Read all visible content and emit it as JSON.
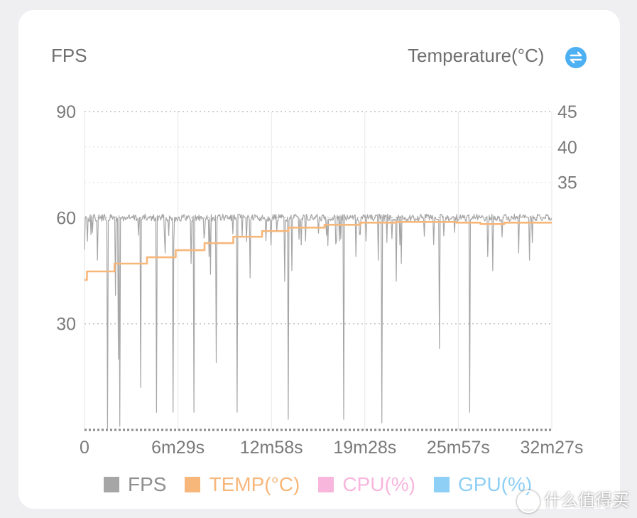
{
  "axis_titles": {
    "left": "FPS",
    "right": "Temperature(°C)"
  },
  "icons": {
    "swap": "swap-arrows-icon",
    "watermark": "zhidemai-logo-icon"
  },
  "watermark_text": "什么值得买",
  "colors": {
    "fps": "#a6a6a6",
    "temp": "#f7b77b",
    "cpu": "#f8b6dd",
    "gpu": "#8ecff5",
    "swap_icon": "#4db0f2",
    "axis_text": "#7a7a7a"
  },
  "chart_data": {
    "type": "line",
    "x_tick_labels": [
      "0",
      "6m29s",
      "12m58s",
      "19m28s",
      "25m57s",
      "32m27s"
    ],
    "x_range_seconds": [
      0,
      1947
    ],
    "y_left": {
      "label": "FPS",
      "ticks": [
        "90",
        "60",
        "30"
      ],
      "range": [
        0,
        90
      ]
    },
    "y_right": {
      "label": "Temperature(°C)",
      "ticks": [
        "45",
        "40",
        "35"
      ],
      "range": [
        0,
        45
      ]
    },
    "grid": true,
    "legend": [
      {
        "name": "FPS",
        "color": "#a6a6a6"
      },
      {
        "name": "TEMP(°C)",
        "color": "#f7b77b"
      },
      {
        "name": "CPU(%)",
        "color": "#f8b6dd"
      },
      {
        "name": "GPU(%)",
        "color": "#8ecff5"
      }
    ],
    "legend_position": "bottom",
    "series": [
      {
        "name": "FPS",
        "axis": "left",
        "baseline": 59,
        "dips": [
          [
            0,
            51
          ],
          [
            55,
            48
          ],
          [
            95,
            0
          ],
          [
            130,
            38
          ],
          [
            140,
            20
          ],
          [
            148,
            1
          ],
          [
            235,
            12
          ],
          [
            300,
            5
          ],
          [
            335,
            50
          ],
          [
            370,
            5
          ],
          [
            445,
            47
          ],
          [
            455,
            5
          ],
          [
            520,
            49
          ],
          [
            525,
            44
          ],
          [
            548,
            19
          ],
          [
            635,
            5
          ],
          [
            690,
            43
          ],
          [
            835,
            42
          ],
          [
            850,
            3
          ],
          [
            865,
            45
          ],
          [
            1080,
            3
          ],
          [
            1130,
            49
          ],
          [
            1225,
            48
          ],
          [
            1240,
            2
          ],
          [
            1300,
            42
          ],
          [
            1320,
            47
          ],
          [
            1480,
            23
          ],
          [
            1605,
            5
          ],
          [
            1680,
            49
          ],
          [
            1700,
            45
          ],
          [
            1810,
            50
          ],
          [
            1855,
            48
          ]
        ]
      },
      {
        "name": "TEMP(°C)",
        "axis": "right",
        "steps": [
          [
            0,
            21.2
          ],
          [
            10,
            22.4
          ],
          [
            125,
            23.5
          ],
          [
            260,
            24.4
          ],
          [
            380,
            25.4
          ],
          [
            500,
            26.4
          ],
          [
            620,
            27.3
          ],
          [
            740,
            28.1
          ],
          [
            850,
            28.6
          ],
          [
            1000,
            29.0
          ],
          [
            1150,
            29.3
          ],
          [
            1300,
            29.4
          ],
          [
            1550,
            29.3
          ],
          [
            1650,
            29.1
          ],
          [
            1750,
            29.3
          ],
          [
            1947,
            29.3
          ]
        ]
      },
      {
        "name": "CPU(%)",
        "axis": "left",
        "values": []
      },
      {
        "name": "GPU(%)",
        "axis": "left",
        "values": []
      }
    ]
  }
}
